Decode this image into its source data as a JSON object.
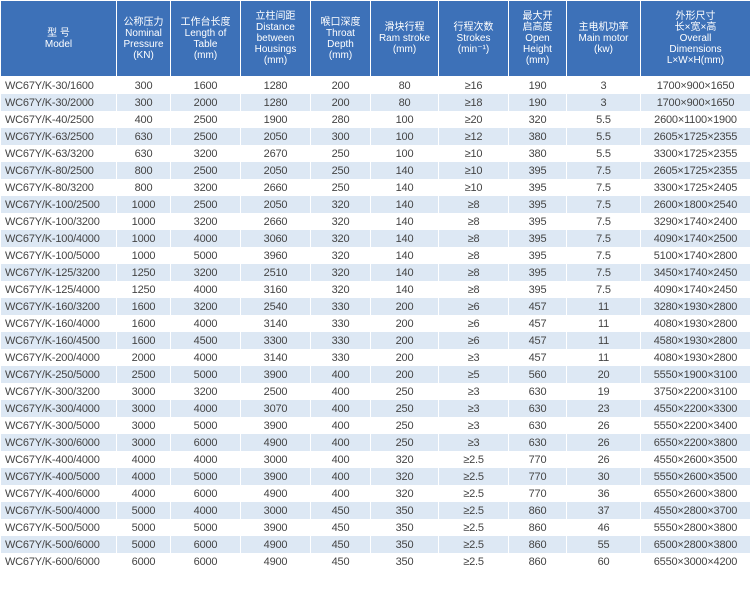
{
  "table": {
    "header": [
      [
        "型 号",
        "Model"
      ],
      [
        "公称压力",
        "Nominal",
        "Pressure",
        "(KN)"
      ],
      [
        "工作台长度",
        "Length of",
        "Table",
        "(mm)"
      ],
      [
        "立柱间距",
        "Distance",
        "between",
        "Housings",
        "(mm)"
      ],
      [
        "喉口深度",
        "Throat",
        "Depth",
        "(mm)"
      ],
      [
        "滑块行程",
        "Ram stroke",
        "(mm)"
      ],
      [
        "行程次数",
        "Strokes",
        "(min⁻¹)"
      ],
      [
        "最大开",
        "启高度",
        "Open",
        "Height",
        "(mm)"
      ],
      [
        "主电机功率",
        "Main motor",
        "(kw)"
      ],
      [
        "外形尺寸",
        "长×宽×高",
        "Overall",
        "Dimensions",
        "L×W×H(mm)"
      ]
    ],
    "rows": [
      [
        "WC67Y/K-30/1600",
        "300",
        "1600",
        "1280",
        "200",
        "80",
        "≥16",
        "190",
        "3",
        "1700×900×1650"
      ],
      [
        "WC67Y/K-30/2000",
        "300",
        "2000",
        "1280",
        "200",
        "80",
        "≥18",
        "190",
        "3",
        "1700×900×1650"
      ],
      [
        "WC67Y/K-40/2500",
        "400",
        "2500",
        "1900",
        "280",
        "100",
        "≥20",
        "320",
        "5.5",
        "2600×1100×1900"
      ],
      [
        "WC67Y/K-63/2500",
        "630",
        "2500",
        "2050",
        "300",
        "100",
        "≥12",
        "380",
        "5.5",
        "2605×1725×2355"
      ],
      [
        "WC67Y/K-63/3200",
        "630",
        "3200",
        "2670",
        "250",
        "100",
        "≥10",
        "380",
        "5.5",
        "3300×1725×2355"
      ],
      [
        "WC67Y/K-80/2500",
        "800",
        "2500",
        "2050",
        "250",
        "140",
        "≥10",
        "395",
        "7.5",
        "2605×1725×2355"
      ],
      [
        "WC67Y/K-80/3200",
        "800",
        "3200",
        "2660",
        "250",
        "140",
        "≥10",
        "395",
        "7.5",
        "3300×1725×2405"
      ],
      [
        "WC67Y/K-100/2500",
        "1000",
        "2500",
        "2050",
        "320",
        "140",
        "≥8",
        "395",
        "7.5",
        "2600×1800×2540"
      ],
      [
        "WC67Y/K-100/3200",
        "1000",
        "3200",
        "2660",
        "320",
        "140",
        "≥8",
        "395",
        "7.5",
        "3290×1740×2400"
      ],
      [
        "WC67Y/K-100/4000",
        "1000",
        "4000",
        "3060",
        "320",
        "140",
        "≥8",
        "395",
        "7.5",
        "4090×1740×2500"
      ],
      [
        "WC67Y/K-100/5000",
        "1000",
        "5000",
        "3960",
        "320",
        "140",
        "≥8",
        "395",
        "7.5",
        "5100×1740×2800"
      ],
      [
        "WC67Y/K-125/3200",
        "1250",
        "3200",
        "2510",
        "320",
        "140",
        "≥8",
        "395",
        "7.5",
        "3450×1740×2450"
      ],
      [
        "WC67Y/K-125/4000",
        "1250",
        "4000",
        "3160",
        "320",
        "140",
        "≥8",
        "395",
        "7.5",
        "4090×1740×2450"
      ],
      [
        "WC67Y/K-160/3200",
        "1600",
        "3200",
        "2540",
        "330",
        "200",
        "≥6",
        "457",
        "11",
        "3280×1930×2800"
      ],
      [
        "WC67Y/K-160/4000",
        "1600",
        "4000",
        "3140",
        "330",
        "200",
        "≥6",
        "457",
        "11",
        "4080×1930×2800"
      ],
      [
        "WC67Y/K-160/4500",
        "1600",
        "4500",
        "3300",
        "330",
        "200",
        "≥6",
        "457",
        "11",
        "4580×1930×2800"
      ],
      [
        "WC67Y/K-200/4000",
        "2000",
        "4000",
        "3140",
        "330",
        "200",
        "≥3",
        "457",
        "11",
        "4080×1930×2800"
      ],
      [
        "WC67Y/K-250/5000",
        "2500",
        "5000",
        "3900",
        "400",
        "200",
        "≥5",
        "560",
        "20",
        "5550×1900×3100"
      ],
      [
        "WC67Y/K-300/3200",
        "3000",
        "3200",
        "2500",
        "400",
        "250",
        "≥3",
        "630",
        "19",
        "3750×2200×3100"
      ],
      [
        "WC67Y/K-300/4000",
        "3000",
        "4000",
        "3070",
        "400",
        "250",
        "≥3",
        "630",
        "23",
        "4550×2200×3300"
      ],
      [
        "WC67Y/K-300/5000",
        "3000",
        "5000",
        "3900",
        "400",
        "250",
        "≥3",
        "630",
        "26",
        "5550×2200×3400"
      ],
      [
        "WC67Y/K-300/6000",
        "3000",
        "6000",
        "4900",
        "400",
        "250",
        "≥3",
        "630",
        "26",
        "6550×2200×3800"
      ],
      [
        "WC67Y/K-400/4000",
        "4000",
        "4000",
        "3000",
        "400",
        "320",
        "≥2.5",
        "770",
        "26",
        "4550×2600×3500"
      ],
      [
        "WC67Y/K-400/5000",
        "4000",
        "5000",
        "3900",
        "400",
        "320",
        "≥2.5",
        "770",
        "30",
        "5550×2600×3500"
      ],
      [
        "WC67Y/K-400/6000",
        "4000",
        "6000",
        "4900",
        "400",
        "320",
        "≥2.5",
        "770",
        "36",
        "6550×2600×3800"
      ],
      [
        "WC67Y/K-500/4000",
        "5000",
        "4000",
        "3000",
        "450",
        "350",
        "≥2.5",
        "860",
        "37",
        "4550×2800×3700"
      ],
      [
        "WC67Y/K-500/5000",
        "5000",
        "5000",
        "3900",
        "450",
        "350",
        "≥2.5",
        "860",
        "46",
        "5550×2800×3800"
      ],
      [
        "WC67Y/K-500/6000",
        "5000",
        "6000",
        "4900",
        "450",
        "350",
        "≥2.5",
        "860",
        "55",
        "6500×2800×3800"
      ],
      [
        "WC67Y/K-600/6000",
        "6000",
        "6000",
        "4900",
        "450",
        "350",
        "≥2.5",
        "860",
        "60",
        "6550×3000×4200"
      ]
    ]
  }
}
